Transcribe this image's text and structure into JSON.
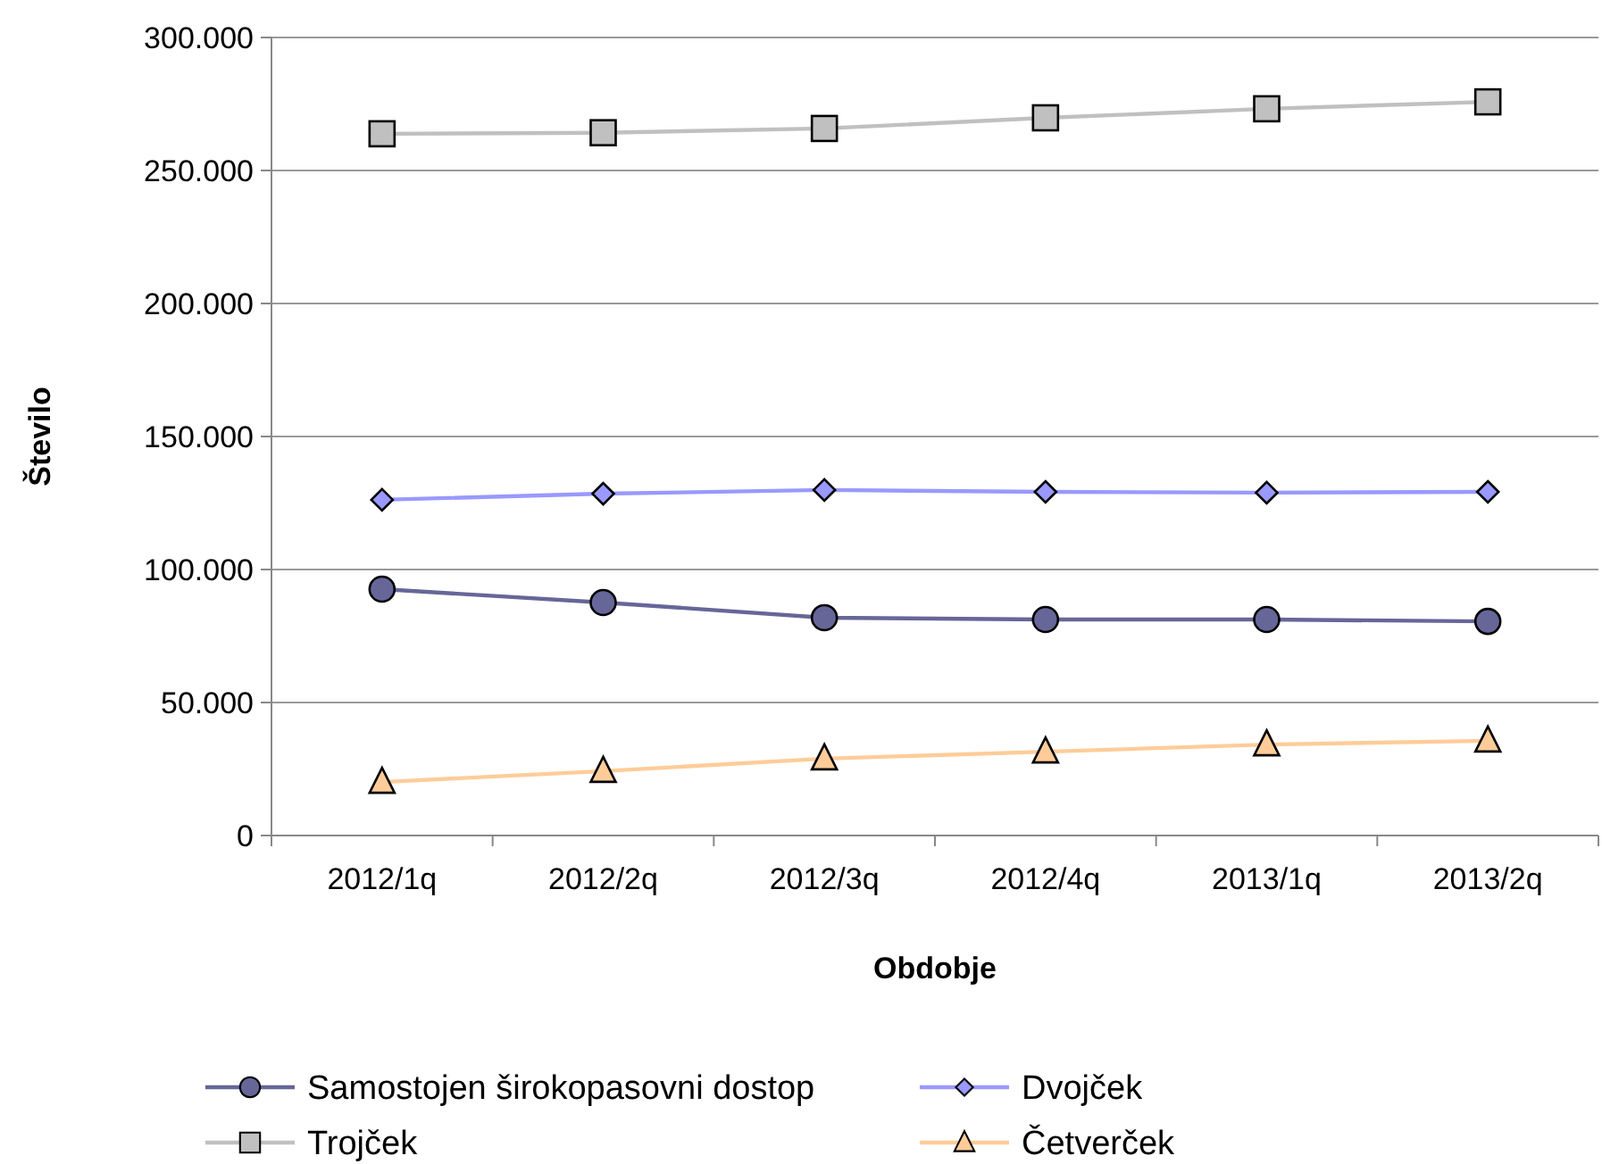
{
  "chart_data": {
    "type": "line",
    "xlabel": "Obdobje",
    "ylabel": "Število",
    "categories": [
      "2012/1q",
      "2012/2q",
      "2012/3q",
      "2012/4q",
      "2013/1q",
      "2013/2q"
    ],
    "series": [
      {
        "name": "Samostojen širokopasovni dostop",
        "color": "#666699",
        "marker": "circle",
        "values": [
          92600,
          87600,
          81900,
          81200,
          81200,
          80500
        ]
      },
      {
        "name": "Dvojček",
        "color": "#9999ff",
        "marker": "diamond",
        "values": [
          126200,
          128500,
          129900,
          129200,
          128900,
          129200
        ]
      },
      {
        "name": "Trojček",
        "color": "#c0c0c0",
        "marker": "square",
        "values": [
          263800,
          264200,
          265800,
          269800,
          273200,
          275800
        ]
      },
      {
        "name": "Četverček",
        "color": "#ffcc99",
        "marker": "triangle",
        "values": [
          20100,
          24200,
          28900,
          31500,
          34200,
          35600
        ]
      }
    ],
    "ylim": [
      0,
      300000
    ],
    "yticks": [
      0,
      {
        "value": 50000,
        "label": "50.000"
      },
      {
        "value": 100000,
        "label": "100.000"
      },
      {
        "value": 150000,
        "label": "150.000"
      },
      {
        "value": 200000,
        "label": "200.000"
      },
      {
        "value": 250000,
        "label": "250.000"
      },
      {
        "value": 300000,
        "label": "300.000"
      }
    ],
    "grid": "y",
    "legend": "bottom"
  }
}
